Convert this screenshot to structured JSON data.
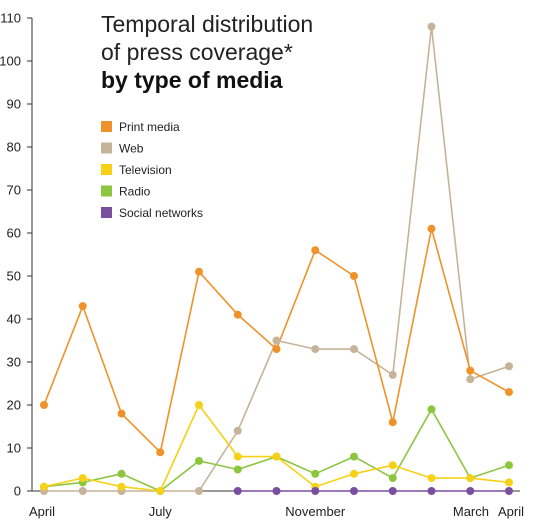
{
  "chart_data": {
    "type": "line",
    "title_lines": [
      "Temporal distribution",
      "of press coverage*"
    ],
    "title_bold": "by type of media",
    "xlabel": "",
    "ylabel": "",
    "ylim": [
      0,
      110
    ],
    "y_ticks": [
      0,
      10,
      20,
      30,
      40,
      50,
      60,
      70,
      80,
      90,
      100,
      110
    ],
    "point_count": 13,
    "x_tick_labels": [
      {
        "index": 0,
        "label": "April"
      },
      {
        "index": 3,
        "label": "July"
      },
      {
        "index": 7,
        "label": "November"
      },
      {
        "index": 11,
        "label": "March"
      },
      {
        "index": 12,
        "label": "April"
      }
    ],
    "grid": false,
    "legend_position": "top-left",
    "series": [
      {
        "name": "Print media",
        "color": "#F0922A",
        "values": [
          20,
          43,
          18,
          9,
          51,
          41,
          33,
          56,
          50,
          16,
          61,
          28,
          23
        ]
      },
      {
        "name": "Web",
        "color": "#C6B49A",
        "values": [
          0,
          0,
          0,
          0,
          0,
          14,
          35,
          33,
          33,
          27,
          108,
          26,
          29
        ]
      },
      {
        "name": "Television",
        "color": "#F7D117",
        "values": [
          1,
          3,
          1,
          0,
          20,
          8,
          8,
          1,
          4,
          6,
          3,
          3,
          2
        ]
      },
      {
        "name": "Radio",
        "color": "#8CC63F",
        "values": [
          1,
          2,
          4,
          0,
          7,
          5,
          8,
          4,
          8,
          3,
          19,
          3,
          6
        ]
      },
      {
        "name": "Social networks",
        "color": "#7B4FA0",
        "values": [
          null,
          null,
          null,
          null,
          null,
          0,
          0,
          0,
          0,
          0,
          0,
          0,
          0
        ]
      }
    ]
  }
}
